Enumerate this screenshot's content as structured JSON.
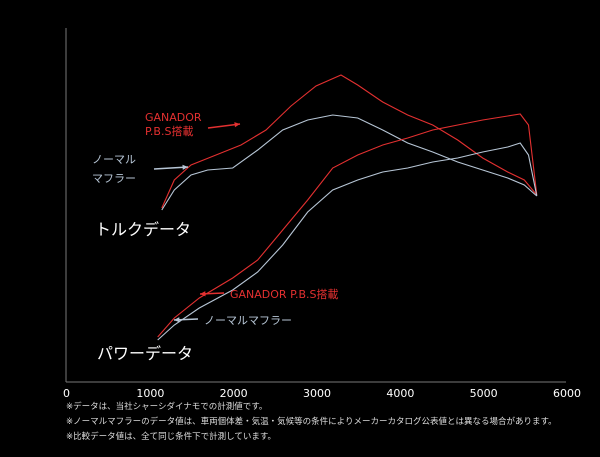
{
  "chart_data": {
    "type": "line",
    "x_ticks": [
      "0",
      "1000",
      "2000",
      "3000",
      "4000",
      "5000",
      "6000"
    ],
    "xlim": [
      0,
      6000
    ],
    "grid": false,
    "groups": [
      {
        "label": "トルクデータ",
        "series": [
          {
            "name": "GANADOR P.B.S搭載",
            "color": "#e33030",
            "points": [
              [
                1150,
                208
              ],
              [
                1300,
                180
              ],
              [
                1500,
                165
              ],
              [
                1800,
                155
              ],
              [
                2100,
                145
              ],
              [
                2400,
                130
              ],
              [
                2700,
                106
              ],
              [
                3000,
                86
              ],
              [
                3300,
                75
              ],
              [
                3500,
                85
              ],
              [
                3800,
                102
              ],
              [
                4100,
                115
              ],
              [
                4400,
                125
              ],
              [
                4700,
                140
              ],
              [
                5000,
                158
              ],
              [
                5300,
                172
              ],
              [
                5500,
                180
              ],
              [
                5650,
                195
              ]
            ]
          },
          {
            "name": "ノーマルマフラー",
            "color": "#b7c6d6",
            "points": [
              [
                1150,
                210
              ],
              [
                1300,
                190
              ],
              [
                1500,
                175
              ],
              [
                1700,
                170
              ],
              [
                2000,
                168
              ],
              [
                2300,
                150
              ],
              [
                2600,
                130
              ],
              [
                2900,
                120
              ],
              [
                3200,
                115
              ],
              [
                3500,
                118
              ],
              [
                3800,
                130
              ],
              [
                4100,
                143
              ],
              [
                4400,
                152
              ],
              [
                4700,
                162
              ],
              [
                5000,
                170
              ],
              [
                5300,
                178
              ],
              [
                5500,
                185
              ],
              [
                5650,
                196
              ]
            ]
          }
        ]
      },
      {
        "label": "パワーデータ",
        "series": [
          {
            "name": "GANADOR P.B.S搭載",
            "color": "#e33030",
            "points": [
              [
                1100,
                337
              ],
              [
                1300,
                318
              ],
              [
                1600,
                298
              ],
              [
                2000,
                278
              ],
              [
                2300,
                260
              ],
              [
                2600,
                230
              ],
              [
                2900,
                200
              ],
              [
                3200,
                168
              ],
              [
                3500,
                155
              ],
              [
                3800,
                145
              ],
              [
                4100,
                138
              ],
              [
                4400,
                130
              ],
              [
                4700,
                125
              ],
              [
                5000,
                120
              ],
              [
                5300,
                116
              ],
              [
                5450,
                114
              ],
              [
                5550,
                125
              ],
              [
                5650,
                195
              ]
            ]
          },
          {
            "name": "ノーマルマフラー",
            "color": "#b7c6d6",
            "points": [
              [
                1100,
                340
              ],
              [
                1300,
                325
              ],
              [
                1600,
                308
              ],
              [
                2000,
                290
              ],
              [
                2300,
                272
              ],
              [
                2600,
                245
              ],
              [
                2900,
                212
              ],
              [
                3200,
                190
              ],
              [
                3500,
                180
              ],
              [
                3800,
                172
              ],
              [
                4100,
                168
              ],
              [
                4400,
                162
              ],
              [
                4700,
                158
              ],
              [
                5000,
                152
              ],
              [
                5300,
                147
              ],
              [
                5450,
                143
              ],
              [
                5550,
                155
              ],
              [
                5650,
                196
              ]
            ]
          }
        ]
      }
    ],
    "labels": {
      "torque": "トルクデータ",
      "power": "パワーデータ",
      "ganador_torque": [
        "GANADOR",
        "P.B.S搭載"
      ],
      "normal_torque": [
        "ノーマル",
        "マフラー"
      ],
      "ganador_power": "GANADOR P.B.S搭載",
      "normal_power": "ノーマルマフラー"
    }
  },
  "notes": [
    "※データは、当社シャーシダイナモでの計測値です。",
    "※ノーマルマフラーのデータ値は、車両個体差・気温・気候等の条件によりメーカーカタログ公表値とは異なる場合があります。",
    "※比較データ値は、全て同じ条件下で計測しています。"
  ]
}
